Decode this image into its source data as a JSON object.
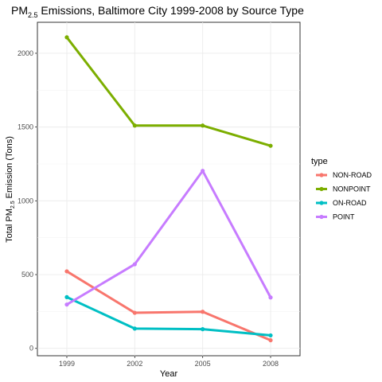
{
  "chart_data": {
    "type": "line",
    "title": {
      "main": "PM",
      "sub": "2.5",
      "rest": " Emissions, Baltimore City 1999-2008 by Source Type"
    },
    "xlabel": "Year",
    "ylabel": {
      "main": "Total PM",
      "sub": "2.5",
      "rest": " Emission (Tons)"
    },
    "x": [
      1999,
      2002,
      2005,
      2008
    ],
    "x_tick_labels": [
      "1999",
      "2002",
      "2005",
      "2008"
    ],
    "y_ticks": [
      0,
      500,
      1000,
      1500,
      2000
    ],
    "y_tick_labels": [
      "0",
      "500",
      "1000",
      "1500",
      "2000"
    ],
    "ylim": [
      -50,
      2210
    ],
    "grid": true,
    "legend": {
      "title": "type",
      "placement": "right"
    },
    "series": [
      {
        "name": "NON-ROAD",
        "color": "#F8766D",
        "values": [
          522,
          241,
          248,
          55
        ]
      },
      {
        "name": "NONPOINT",
        "color": "#7CAE00",
        "values": [
          2108,
          1510,
          1510,
          1373
        ]
      },
      {
        "name": "ON-ROAD",
        "color": "#00BFC4",
        "values": [
          347,
          134,
          130,
          88
        ]
      },
      {
        "name": "POINT",
        "color": "#C77CFF",
        "values": [
          297,
          570,
          1203,
          345
        ]
      }
    ]
  }
}
